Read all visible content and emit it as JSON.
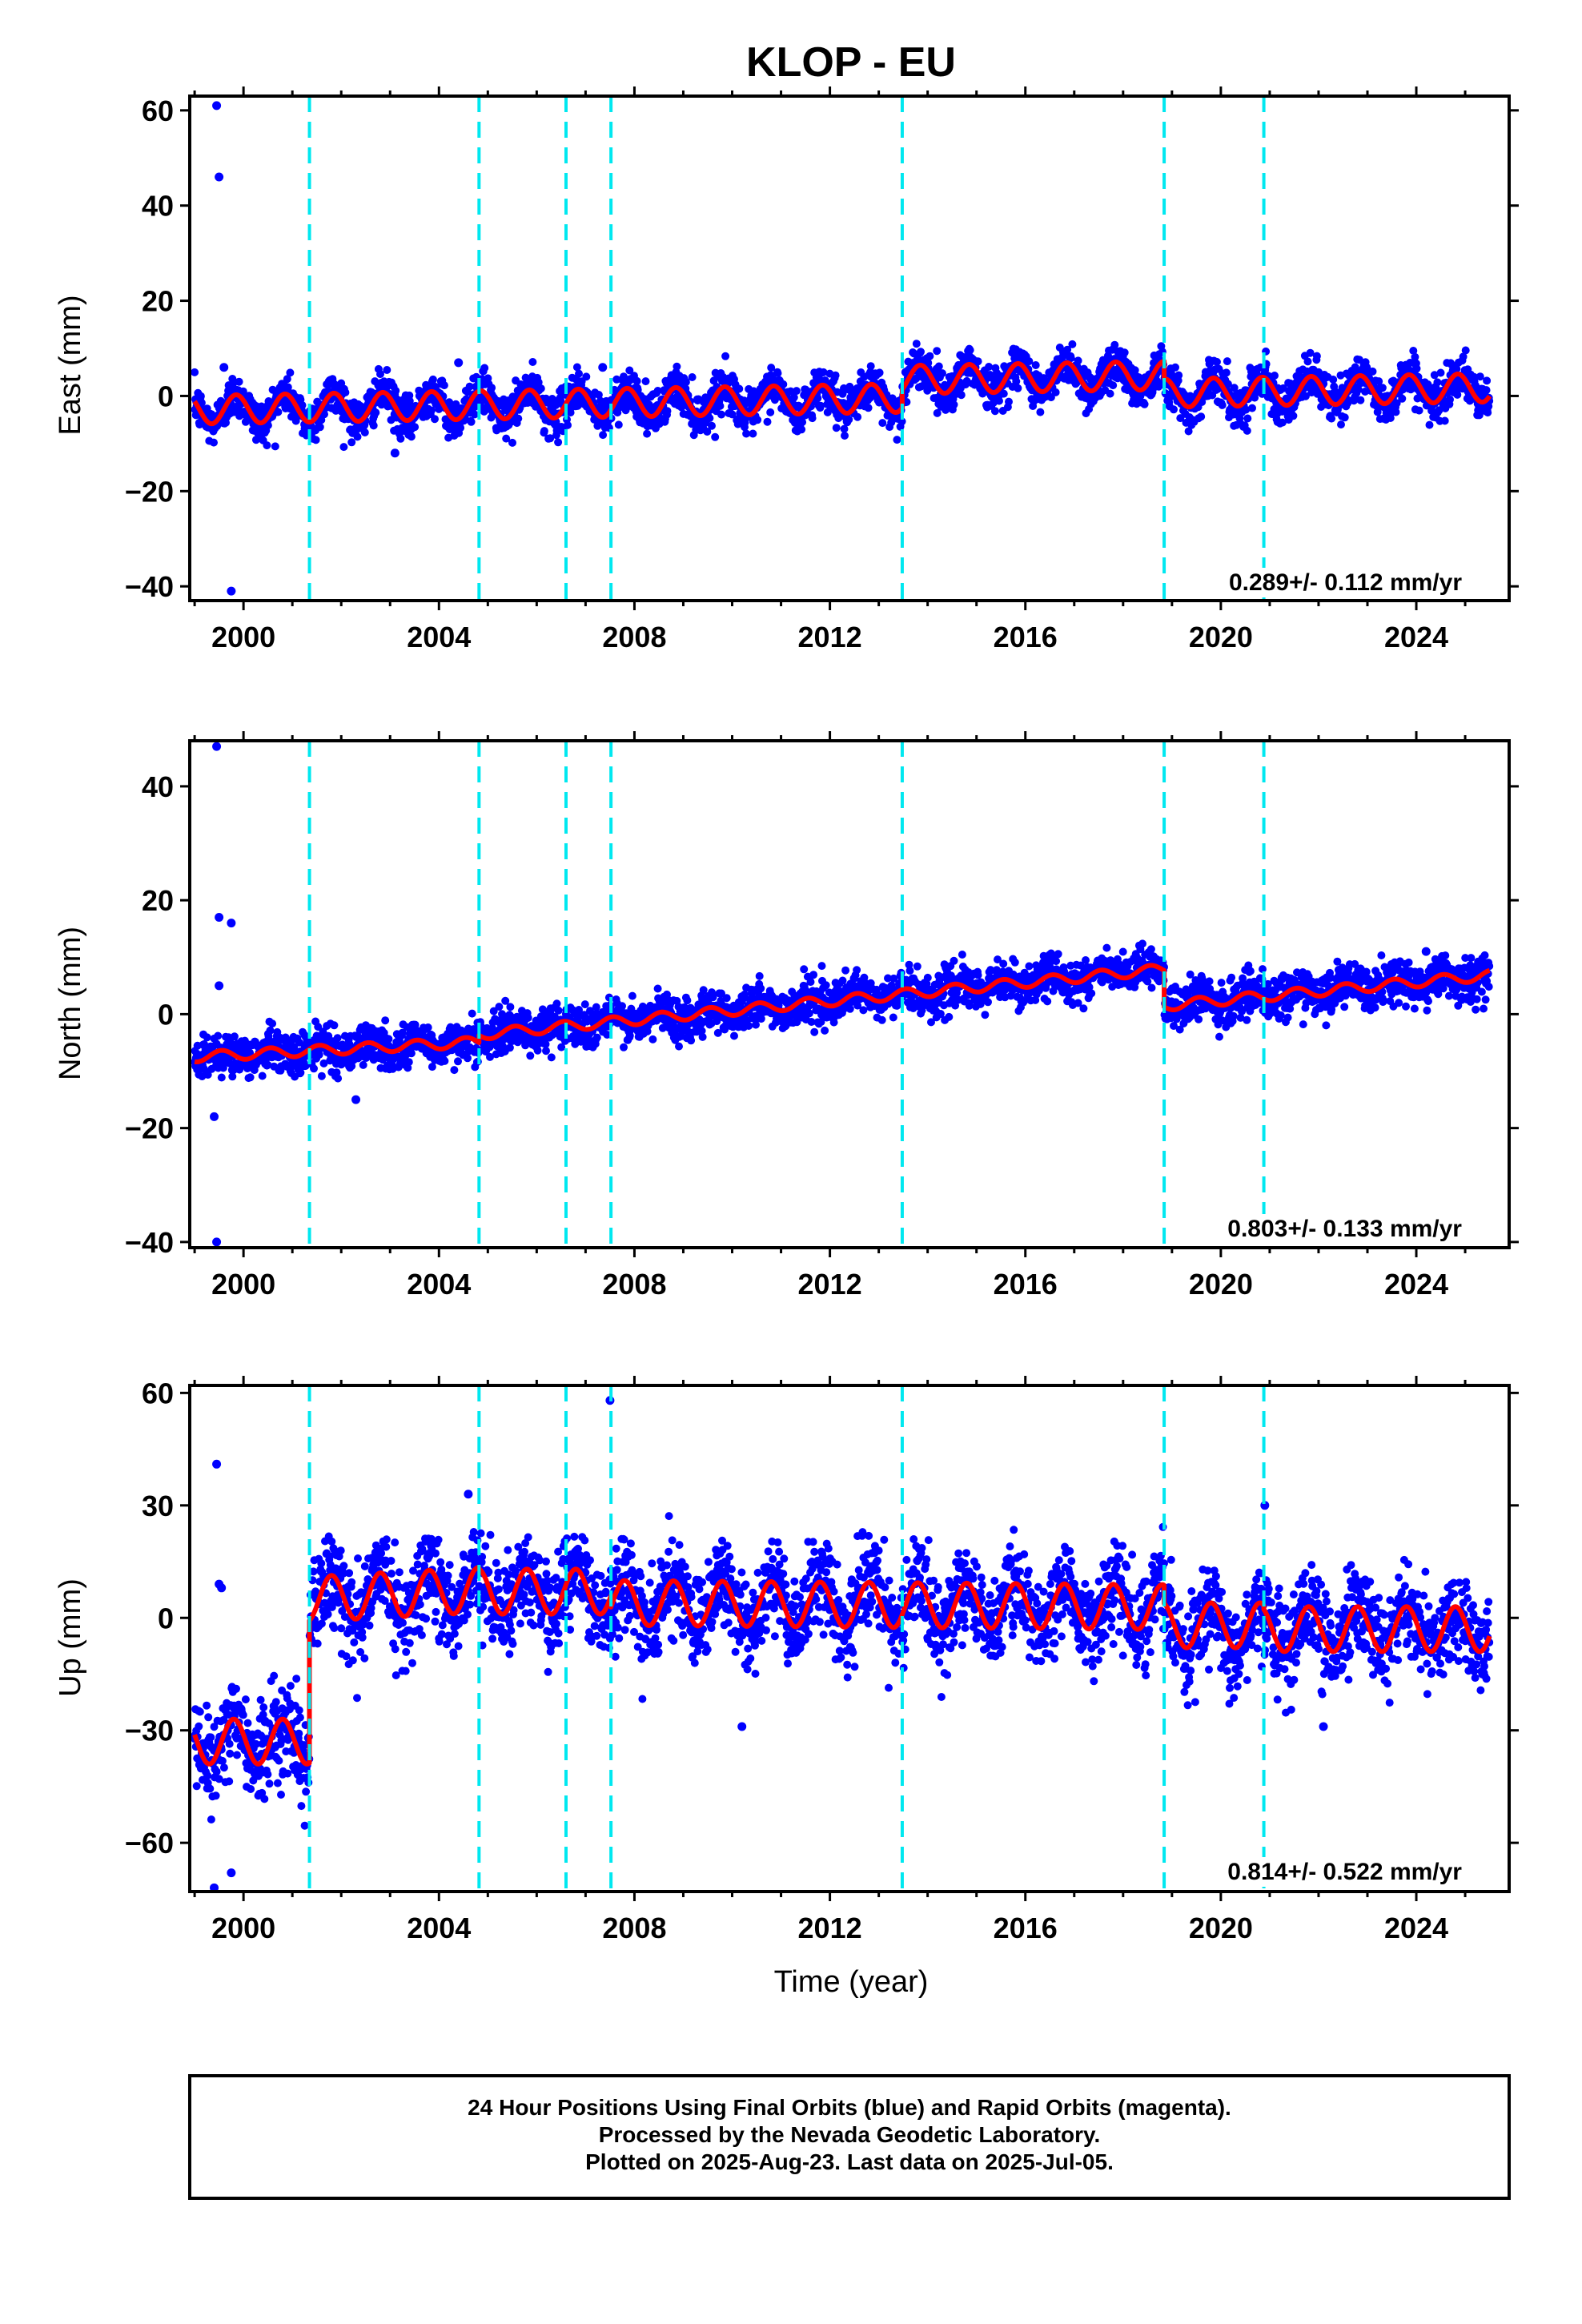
{
  "figure": {
    "title": "KLOP - EU",
    "xlabel": "Time (year)",
    "footer": [
      "24 Hour Positions Using Final Orbits (blue) and Rapid Orbits (magenta).",
      "Processed by the Nevada Geodetic Laboratory.",
      "Plotted on 2025-Aug-23. Last data on 2025-Jul-05."
    ],
    "colors": {
      "points": "#0000ff",
      "model": "#ff0000",
      "event_lines": "#00e8f0",
      "frame": "#000000"
    }
  },
  "chart_data": [
    {
      "type": "scatter",
      "name": "east",
      "ylabel": "East (mm)",
      "xlim": [
        1998.9,
        2025.9
      ],
      "ylim": [
        -43,
        63
      ],
      "yticks": [
        -40,
        -20,
        0,
        20,
        40,
        60
      ],
      "xticks": [
        2000,
        2004,
        2008,
        2012,
        2016,
        2020,
        2024
      ],
      "rate_label": "0.289+/- 0.112 mm/yr",
      "event_lines": [
        2001.35,
        2004.82,
        2006.6,
        2007.52,
        2013.48,
        2018.84,
        2020.88
      ],
      "model": {
        "segments": [
          [
            1999.0,
            2013.48,
            -2.9,
            0.17
          ],
          [
            2013.48,
            2018.84,
            3.4,
            0.17
          ],
          [
            2018.84,
            2025.5,
            0.6,
            0.17
          ]
        ],
        "annual_amplitude": 3.0,
        "annual_phase": 0.6
      },
      "scatter_sigma": 2.2,
      "outliers": [
        [
          1999.45,
          61
        ],
        [
          1999.5,
          46
        ],
        [
          1999.75,
          -41
        ],
        [
          1999.6,
          6
        ],
        [
          2004.4,
          7
        ],
        [
          2003.1,
          -12
        ],
        [
          2007.35,
          6
        ]
      ]
    },
    {
      "type": "scatter",
      "name": "north",
      "ylabel": "North (mm)",
      "xlim": [
        1998.9,
        2025.9
      ],
      "ylim": [
        -41,
        48
      ],
      "yticks": [
        -40,
        -20,
        0,
        20,
        40
      ],
      "xticks": [
        2000,
        2004,
        2008,
        2012,
        2016,
        2020,
        2024
      ],
      "rate_label": "0.803+/- 0.133 mm/yr",
      "event_lines": [
        2001.35,
        2004.82,
        2006.6,
        2007.52,
        2013.48,
        2018.84,
        2020.88
      ],
      "model": {
        "segments": [
          [
            1999.0,
            2004.82,
            -7.5,
            0.45
          ],
          [
            2004.82,
            2018.84,
            -3.6,
            0.82
          ],
          [
            2018.84,
            2025.5,
            1.5,
            0.8
          ]
        ],
        "annual_amplitude": 0.9,
        "annual_phase": 0.3
      },
      "scatter_sigma": 1.8,
      "outliers": [
        [
          1999.45,
          47
        ],
        [
          1999.5,
          17
        ],
        [
          1999.75,
          16
        ],
        [
          1999.5,
          5
        ],
        [
          1999.4,
          -18
        ],
        [
          1999.45,
          -40
        ],
        [
          2002.3,
          -15
        ],
        [
          2024.2,
          11
        ]
      ]
    },
    {
      "type": "scatter",
      "name": "up",
      "ylabel": "Up (mm)",
      "xlim": [
        1998.9,
        2025.9
      ],
      "ylim": [
        -73,
        62
      ],
      "yticks": [
        -60,
        -30,
        0,
        30,
        60
      ],
      "xticks": [
        2000,
        2004,
        2008,
        2012,
        2016,
        2020,
        2024
      ],
      "rate_label": "0.814+/- 0.522 mm/yr",
      "event_lines": [
        2001.35,
        2004.82,
        2006.6,
        2007.52,
        2013.48,
        2018.84,
        2020.88
      ],
      "model": {
        "segments": [
          [
            1999.0,
            2001.35,
            -33.0,
            0.0
          ],
          [
            2001.35,
            2004.82,
            5.0,
            0.7
          ],
          [
            2004.82,
            2007.52,
            7.0,
            0.0
          ],
          [
            2007.52,
            2018.84,
            4.0,
            -0.1
          ],
          [
            2018.84,
            2020.88,
            -2.0,
            0.0
          ],
          [
            2020.88,
            2025.5,
            -3.0,
            0.0
          ]
        ],
        "annual_amplitude": 6.0,
        "annual_phase": 0.55
      },
      "scatter_sigma": 6.0,
      "outliers": [
        [
          1999.45,
          41
        ],
        [
          1999.5,
          9
        ],
        [
          1999.55,
          8
        ],
        [
          1999.4,
          -72
        ],
        [
          1999.75,
          -68
        ],
        [
          2007.5,
          58
        ],
        [
          2004.6,
          33
        ],
        [
          2020.9,
          30
        ],
        [
          2010.2,
          -29
        ],
        [
          2022.1,
          -29
        ]
      ]
    }
  ]
}
